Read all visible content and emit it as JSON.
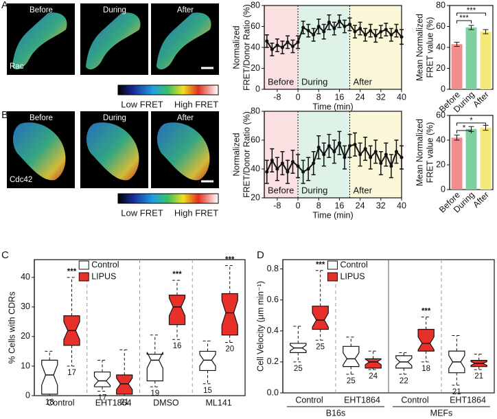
{
  "panel_labels": [
    "A",
    "B",
    "C",
    "D"
  ],
  "images": [
    {
      "titles": [
        "Before",
        "During",
        "After"
      ],
      "protein": "Rac",
      "colorbar": [
        "Low FRET",
        "High FRET"
      ]
    },
    {
      "titles": [
        "Before",
        "During",
        "After"
      ],
      "protein": "Cdc42",
      "colorbar": [
        "Low FRET",
        "High FRET"
      ]
    }
  ],
  "chart_data": [
    {
      "type": "line",
      "ylabel": [
        "Normalized",
        "FRET/Donor Ratio (%)"
      ],
      "xlabel": "Time (min)",
      "x": [
        -12,
        -10,
        -8,
        -6,
        -4,
        -2,
        0,
        2,
        4,
        6,
        8,
        10,
        12,
        14,
        16,
        18,
        20,
        22,
        24,
        26,
        28,
        30,
        32,
        34,
        36,
        38,
        40
      ],
      "values": [
        46,
        38,
        42,
        40,
        45,
        41,
        45,
        59,
        56,
        52,
        60,
        55,
        64,
        58,
        65,
        60,
        62,
        55,
        58,
        52,
        56,
        51,
        55,
        57,
        52,
        56,
        50
      ],
      "errors": [
        6,
        6,
        6,
        6,
        6,
        6,
        6,
        6,
        6,
        6,
        7,
        7,
        7,
        6,
        6,
        6,
        6,
        6,
        6,
        6,
        6,
        6,
        6,
        6,
        6,
        6,
        7
      ],
      "color": "#111111",
      "xlim": [
        -13,
        40
      ],
      "ylim": [
        0,
        80
      ],
      "xticks": [
        -8,
        0,
        8,
        16,
        24,
        32,
        40
      ],
      "yticks": [
        0,
        20,
        40,
        60,
        80
      ],
      "regions": [
        {
          "label": "Before",
          "from": -13,
          "to": 0,
          "color": "#fbe1e1"
        },
        {
          "label": "During",
          "from": 0,
          "to": 20,
          "color": "#dff2e8"
        },
        {
          "label": "After",
          "from": 20,
          "to": 40,
          "color": "#fbf8da"
        }
      ]
    },
    {
      "type": "bar",
      "ylabel": [
        "Mean Normalized",
        "FRET value (%)"
      ],
      "categories": [
        "Before",
        "During",
        "After"
      ],
      "values": [
        43,
        59,
        55
      ],
      "errors": [
        2,
        2,
        2
      ],
      "colors": [
        "#f28b8b",
        "#7fd0a0",
        "#f3e87a"
      ],
      "ylim": [
        0,
        80
      ],
      "yticks": [
        0,
        20,
        40,
        60,
        80
      ],
      "brackets": [
        {
          "pair": [
            "Before",
            "During"
          ],
          "label": "***"
        },
        {
          "pair": [
            "Before",
            "After"
          ],
          "label": "***"
        }
      ]
    },
    {
      "type": "line",
      "ylabel": [
        "Normalized",
        "FRET/Donor Ratio (%)"
      ],
      "xlabel": "Time (min)",
      "x": [
        -12,
        -10,
        -8,
        -6,
        -4,
        -2,
        0,
        2,
        4,
        6,
        8,
        10,
        12,
        14,
        16,
        18,
        20,
        22,
        24,
        26,
        28,
        30,
        32,
        34,
        36,
        38,
        40
      ],
      "values": [
        38,
        46,
        40,
        44,
        38,
        45,
        42,
        38,
        40,
        44,
        55,
        50,
        56,
        52,
        58,
        48,
        56,
        57,
        50,
        54,
        48,
        52,
        44,
        50,
        42,
        52,
        48
      ],
      "errors": [
        8,
        8,
        8,
        8,
        8,
        8,
        8,
        8,
        8,
        8,
        8,
        8,
        8,
        8,
        8,
        8,
        8,
        8,
        8,
        8,
        8,
        8,
        8,
        8,
        8,
        8,
        8
      ],
      "color": "#111111",
      "xlim": [
        -13,
        40
      ],
      "ylim": [
        20,
        80
      ],
      "xticks": [
        -8,
        0,
        8,
        16,
        24,
        32,
        40
      ],
      "yticks": [
        20,
        40,
        60,
        80
      ],
      "regions": [
        {
          "label": "Before",
          "from": -13,
          "to": 0,
          "color": "#fbe1e1"
        },
        {
          "label": "During",
          "from": 0,
          "to": 20,
          "color": "#dff2e8"
        },
        {
          "label": "After",
          "from": 20,
          "to": 40,
          "color": "#fbf8da"
        }
      ]
    },
    {
      "type": "bar",
      "ylabel": [
        "Mean Normalized",
        "FRET value (%)"
      ],
      "categories": [
        "Before",
        "During",
        "After"
      ],
      "values": [
        42,
        49,
        50
      ],
      "errors": [
        2,
        2,
        2
      ],
      "colors": [
        "#f28b8b",
        "#7fd0a0",
        "#f3e87a"
      ],
      "ylim": [
        0,
        60
      ],
      "yticks": [
        0,
        20,
        40,
        60
      ],
      "brackets": [
        {
          "pair": [
            "Before",
            "During"
          ],
          "label": "*"
        },
        {
          "pair": [
            "Before",
            "After"
          ],
          "label": "*"
        }
      ]
    },
    {
      "type": "box",
      "ylabel": "% Cells with CDRs",
      "legend": "top-left",
      "categories": [
        "Control",
        "EHT1864",
        "DMSO",
        "ML141"
      ],
      "ylim": [
        0,
        46
      ],
      "yticks": [
        0,
        10,
        20,
        30,
        40
      ],
      "series": [
        {
          "name": "Control",
          "color": "#ffffff",
          "min": [
            0,
            1.5,
            3,
            4
          ],
          "q1": [
            0.5,
            3,
            5,
            8.5
          ],
          "median": [
            7,
            5,
            12,
            12
          ],
          "q3": [
            12,
            8,
            14,
            15
          ],
          "max": [
            15,
            12,
            20.5,
            18.5
          ],
          "n": [
            18,
            17,
            19,
            15
          ],
          "significance": [
            null,
            null,
            null,
            null
          ]
        },
        {
          "name": "LIPUS",
          "color": "#e8302a",
          "min": [
            10,
            0,
            19,
            18
          ],
          "q1": [
            17,
            0.5,
            24,
            20.5
          ],
          "median": [
            22,
            4,
            30,
            28
          ],
          "q3": [
            27,
            7,
            34,
            34.5
          ],
          "max": [
            40,
            15.5,
            39,
            44
          ],
          "n": [
            17,
            21,
            16,
            20
          ],
          "significance": [
            "***",
            null,
            "***",
            "***"
          ]
        }
      ]
    },
    {
      "type": "box",
      "ylabel": "Cell Velocity (μm min⁻¹)",
      "legend": "top-left",
      "categories": [
        "Control",
        "EHT1864",
        "Control",
        "EHT1864"
      ],
      "group_labels": [
        "B16s",
        "MEFs"
      ],
      "ylim": [
        0,
        0.86
      ],
      "yticks": [
        {
          "value": 0,
          "label": "0.0"
        },
        0.2,
        0.4,
        0.6,
        0.8
      ],
      "series": [
        {
          "name": "Control",
          "color": "#ffffff",
          "min": [
            0.2,
            0.12,
            0.12,
            0.05
          ],
          "q1": [
            0.26,
            0.17,
            0.16,
            0.13
          ],
          "median": [
            0.29,
            0.22,
            0.2,
            0.2
          ],
          "q3": [
            0.32,
            0.3,
            0.24,
            0.27
          ],
          "max": [
            0.43,
            0.36,
            0.26,
            0.37
          ],
          "n": [
            25,
            25,
            22,
            21
          ],
          "significance": [
            null,
            null,
            null,
            null
          ]
        },
        {
          "name": "LIPUS",
          "color": "#e8302a",
          "min": [
            0.34,
            0.15,
            0.2,
            0.15
          ],
          "q1": [
            0.41,
            0.16,
            0.27,
            0.17
          ],
          "median": [
            0.47,
            0.2,
            0.32,
            0.19
          ],
          "q3": [
            0.56,
            0.22,
            0.41,
            0.21
          ],
          "max": [
            0.79,
            0.27,
            0.49,
            0.25
          ],
          "n": [
            25,
            24,
            18,
            21
          ],
          "significance": [
            "***",
            null,
            "***",
            null
          ]
        }
      ]
    }
  ]
}
